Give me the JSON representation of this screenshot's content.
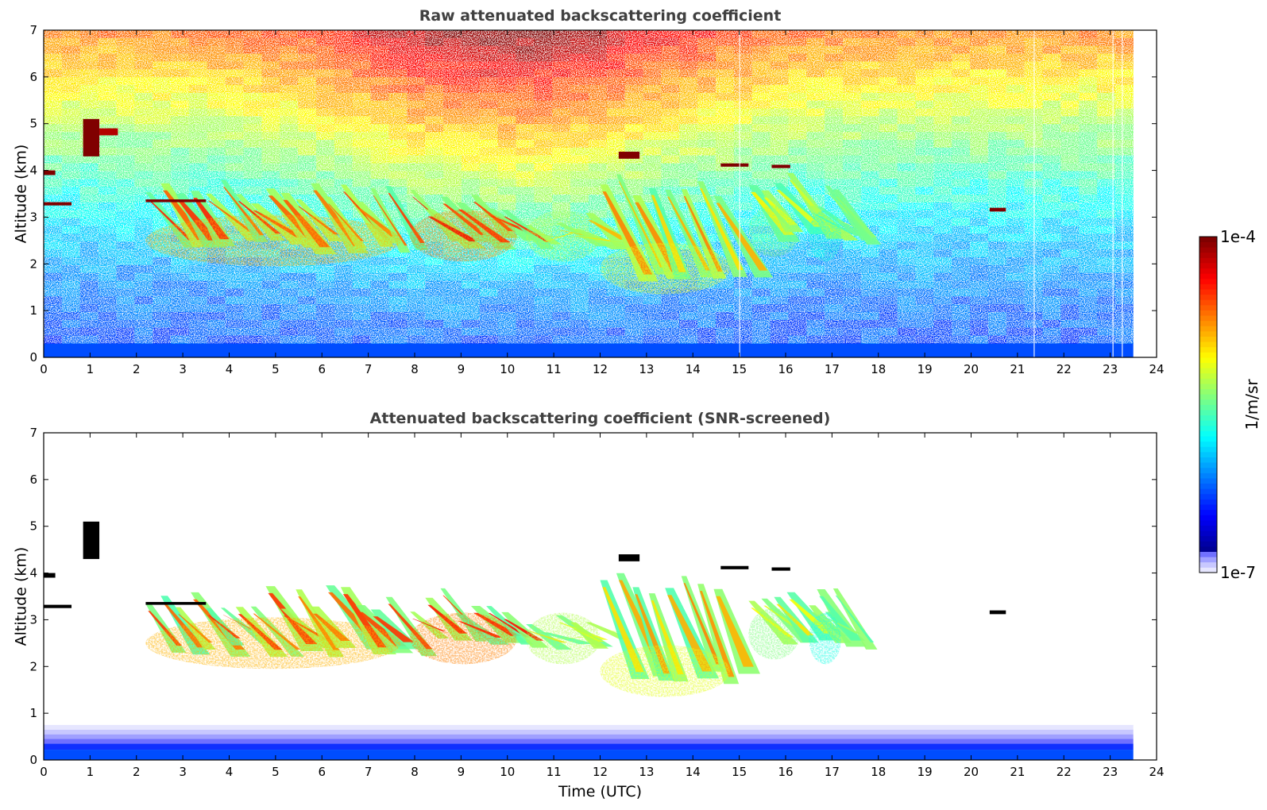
{
  "chart_data": [
    {
      "type": "heatmap",
      "title": "Raw attenuated backscattering coefficient",
      "xlabel": "",
      "ylabel": "Altitude (km)",
      "xlim": [
        0,
        24
      ],
      "ylim": [
        0,
        7
      ],
      "xticks": [
        0,
        1,
        2,
        3,
        4,
        5,
        6,
        7,
        8,
        9,
        10,
        11,
        12,
        13,
        14,
        15,
        16,
        17,
        18,
        19,
        20,
        21,
        22,
        23,
        24
      ],
      "yticks": [
        0,
        1,
        2,
        3,
        4,
        5,
        6,
        7
      ],
      "data_end_time": 23.5,
      "features": [
        {
          "kind": "surface-layer",
          "t0": 0,
          "t1": 23.5,
          "z0": 0,
          "z1": 0.3,
          "level": 0.2
        },
        {
          "kind": "background-noise",
          "t0": 0,
          "t1": 23.5,
          "z0": 0.3,
          "z1": 7,
          "level_low": 0.2,
          "level_high": 0.75
        },
        {
          "kind": "virga",
          "t0": 2.2,
          "t1": 7.7,
          "z0": 2.2,
          "z1": 3.8,
          "level": 0.75
        },
        {
          "kind": "virga",
          "t0": 7.9,
          "t1": 10.2,
          "z0": 2.3,
          "z1": 3.7,
          "level": 0.8
        },
        {
          "kind": "virga",
          "t0": 10.4,
          "t1": 12.0,
          "z0": 2.3,
          "z1": 3.2,
          "level": 0.6
        },
        {
          "kind": "virga",
          "t0": 12.0,
          "t1": 14.8,
          "z0": 1.6,
          "z1": 4.0,
          "level": 0.65
        },
        {
          "kind": "virga",
          "t0": 15.2,
          "t1": 16.3,
          "z0": 2.4,
          "z1": 4.0,
          "level": 0.55
        },
        {
          "kind": "virga",
          "t0": 16.5,
          "t1": 17.2,
          "z0": 2.3,
          "z1": 3.7,
          "level": 0.45
        },
        {
          "kind": "liquid-layer",
          "t0": 0.0,
          "t1": 0.25,
          "z0": 3.9,
          "z1": 4.0,
          "level": 1.0
        },
        {
          "kind": "liquid-layer",
          "t0": 0.0,
          "t1": 0.6,
          "z0": 3.25,
          "z1": 3.32,
          "level": 1.0
        },
        {
          "kind": "liquid-layer",
          "t0": 0.85,
          "t1": 1.2,
          "z0": 4.3,
          "z1": 5.1,
          "level": 1.0
        },
        {
          "kind": "liquid-layer",
          "t0": 1.2,
          "t1": 1.6,
          "z0": 4.75,
          "z1": 4.9,
          "level": 0.95
        },
        {
          "kind": "liquid-layer",
          "t0": 2.2,
          "t1": 3.5,
          "z0": 3.32,
          "z1": 3.38,
          "level": 1.0
        },
        {
          "kind": "liquid-layer",
          "t0": 12.4,
          "t1": 12.85,
          "z0": 4.25,
          "z1": 4.4,
          "level": 1.0
        },
        {
          "kind": "liquid-layer",
          "t0": 14.6,
          "t1": 15.2,
          "z0": 4.08,
          "z1": 4.15,
          "level": 1.0
        },
        {
          "kind": "liquid-layer",
          "t0": 15.7,
          "t1": 16.1,
          "z0": 4.05,
          "z1": 4.12,
          "level": 1.0
        },
        {
          "kind": "liquid-layer",
          "t0": 20.4,
          "t1": 20.75,
          "z0": 3.12,
          "z1": 3.2,
          "level": 1.0
        }
      ]
    },
    {
      "type": "heatmap",
      "title": "Attenuated backscattering coefficient (SNR-screened)",
      "xlabel": "Time (UTC)",
      "ylabel": "Altitude (km)",
      "xlim": [
        0,
        24
      ],
      "ylim": [
        0,
        7
      ],
      "xticks": [
        0,
        1,
        2,
        3,
        4,
        5,
        6,
        7,
        8,
        9,
        10,
        11,
        12,
        13,
        14,
        15,
        16,
        17,
        18,
        19,
        20,
        21,
        22,
        23,
        24
      ],
      "yticks": [
        0,
        1,
        2,
        3,
        4,
        5,
        6,
        7
      ],
      "data_end_time": 23.5,
      "features": [
        {
          "kind": "boundary-layer",
          "t0": 0,
          "t1": 23.5,
          "z0": 0,
          "z1": 0.75,
          "level": 0.12
        },
        {
          "kind": "virga",
          "t0": 2.2,
          "t1": 7.7,
          "z0": 2.2,
          "z1": 3.8,
          "level": 0.75
        },
        {
          "kind": "virga",
          "t0": 7.9,
          "t1": 10.2,
          "z0": 2.3,
          "z1": 3.7,
          "level": 0.8
        },
        {
          "kind": "virga",
          "t0": 10.4,
          "t1": 12.0,
          "z0": 2.3,
          "z1": 3.2,
          "level": 0.6
        },
        {
          "kind": "virga",
          "t0": 12.0,
          "t1": 14.8,
          "z0": 1.6,
          "z1": 4.0,
          "level": 0.65
        },
        {
          "kind": "virga",
          "t0": 15.2,
          "t1": 16.3,
          "z0": 2.4,
          "z1": 4.0,
          "level": 0.55
        },
        {
          "kind": "virga",
          "t0": 16.5,
          "t1": 17.2,
          "z0": 2.3,
          "z1": 3.7,
          "level": 0.45
        },
        {
          "kind": "saturated-layer",
          "t0": 0.0,
          "t1": 0.25,
          "z0": 3.9,
          "z1": 4.0
        },
        {
          "kind": "saturated-layer",
          "t0": 0.0,
          "t1": 0.6,
          "z0": 3.25,
          "z1": 3.32
        },
        {
          "kind": "saturated-layer",
          "t0": 0.85,
          "t1": 1.2,
          "z0": 4.3,
          "z1": 5.1
        },
        {
          "kind": "saturated-layer",
          "t0": 2.2,
          "t1": 3.5,
          "z0": 3.32,
          "z1": 3.38
        },
        {
          "kind": "saturated-layer",
          "t0": 12.4,
          "t1": 12.85,
          "z0": 4.25,
          "z1": 4.4
        },
        {
          "kind": "saturated-layer",
          "t0": 14.6,
          "t1": 15.2,
          "z0": 4.08,
          "z1": 4.15
        },
        {
          "kind": "saturated-layer",
          "t0": 15.7,
          "t1": 16.1,
          "z0": 4.05,
          "z1": 4.12
        },
        {
          "kind": "saturated-layer",
          "t0": 20.4,
          "t1": 20.75,
          "z0": 3.12,
          "z1": 3.2
        }
      ]
    }
  ],
  "colorbar": {
    "label": "1/m/sr",
    "min_label": "1e-7",
    "max_label": "1e-4",
    "scale": "log",
    "colormap": "jet",
    "low_colors": [
      "#e6e6ff",
      "#c8c8ff",
      "#a0a0ff",
      "#7070ff"
    ],
    "saturation_color": "#000000"
  }
}
